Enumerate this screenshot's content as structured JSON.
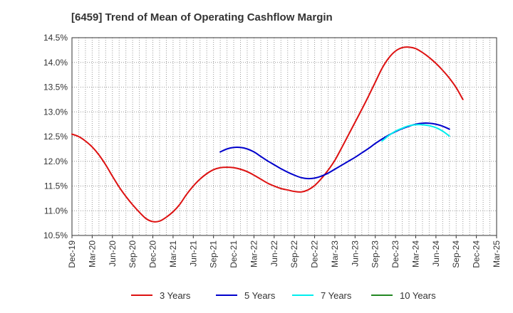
{
  "chart_data": {
    "type": "line",
    "title": "[6459]  Trend of Mean of Operating Cashflow Margin",
    "xlabel": "",
    "ylabel": "",
    "ylim": [
      10.5,
      14.5
    ],
    "yticks": [
      "10.5%",
      "11.0%",
      "11.5%",
      "12.0%",
      "12.5%",
      "13.0%",
      "13.5%",
      "14.0%",
      "14.5%"
    ],
    "ytick_values": [
      10.5,
      11.0,
      11.5,
      12.0,
      12.5,
      13.0,
      13.5,
      14.0,
      14.5
    ],
    "xticks": [
      "Dec-19",
      "Mar-20",
      "Jun-20",
      "Sep-20",
      "Dec-20",
      "Mar-21",
      "Jun-21",
      "Sep-21",
      "Dec-21",
      "Mar-22",
      "Jun-22",
      "Sep-22",
      "Dec-22",
      "Mar-23",
      "Jun-23",
      "Sep-23",
      "Dec-23",
      "Mar-24",
      "Jun-24",
      "Sep-24",
      "Dec-24",
      "Mar-25"
    ],
    "grid": true,
    "legend_position": "bottom",
    "series": [
      {
        "name": "3 Years",
        "color": "#dd1111",
        "points": [
          [
            "Dec-19",
            12.55
          ],
          [
            "Jan-20",
            12.5
          ],
          [
            "Feb-20",
            12.41
          ],
          [
            "Mar-20",
            12.29
          ],
          [
            "Apr-20",
            12.13
          ],
          [
            "May-20",
            11.93
          ],
          [
            "Jun-20",
            11.7
          ],
          [
            "Jul-20",
            11.48
          ],
          [
            "Aug-20",
            11.29
          ],
          [
            "Sep-20",
            11.12
          ],
          [
            "Oct-20",
            10.97
          ],
          [
            "Nov-20",
            10.84
          ],
          [
            "Dec-20",
            10.78
          ],
          [
            "Jan-21",
            10.79
          ],
          [
            "Feb-21",
            10.87
          ],
          [
            "Mar-21",
            10.98
          ],
          [
            "Apr-21",
            11.13
          ],
          [
            "May-21",
            11.33
          ],
          [
            "Jun-21",
            11.5
          ],
          [
            "Jul-21",
            11.64
          ],
          [
            "Aug-21",
            11.75
          ],
          [
            "Sep-21",
            11.83
          ],
          [
            "Oct-21",
            11.87
          ],
          [
            "Nov-21",
            11.88
          ],
          [
            "Dec-21",
            11.87
          ],
          [
            "Jan-22",
            11.84
          ],
          [
            "Feb-22",
            11.79
          ],
          [
            "Mar-22",
            11.72
          ],
          [
            "Apr-22",
            11.64
          ],
          [
            "May-22",
            11.56
          ],
          [
            "Jun-22",
            11.5
          ],
          [
            "Jul-22",
            11.45
          ],
          [
            "Aug-22",
            11.42
          ],
          [
            "Sep-22",
            11.39
          ],
          [
            "Oct-22",
            11.38
          ],
          [
            "Nov-22",
            11.42
          ],
          [
            "Dec-22",
            11.51
          ],
          [
            "Jan-23",
            11.65
          ],
          [
            "Feb-23",
            11.82
          ],
          [
            "Mar-23",
            12.02
          ],
          [
            "Apr-23",
            12.27
          ],
          [
            "May-23",
            12.53
          ],
          [
            "Jun-23",
            12.79
          ],
          [
            "Jul-23",
            13.05
          ],
          [
            "Aug-23",
            13.32
          ],
          [
            "Sep-23",
            13.6
          ],
          [
            "Oct-23",
            13.88
          ],
          [
            "Nov-23",
            14.09
          ],
          [
            "Dec-23",
            14.23
          ],
          [
            "Jan-24",
            14.3
          ],
          [
            "Feb-24",
            14.31
          ],
          [
            "Mar-24",
            14.28
          ],
          [
            "Apr-24",
            14.2
          ],
          [
            "May-24",
            14.1
          ],
          [
            "Jun-24",
            13.98
          ],
          [
            "Jul-24",
            13.84
          ],
          [
            "Aug-24",
            13.68
          ],
          [
            "Sep-24",
            13.49
          ],
          [
            "Oct-24",
            13.25
          ]
        ]
      },
      {
        "name": "5 Years",
        "color": "#0000cc",
        "points": [
          [
            "Oct-21",
            12.19
          ],
          [
            "Nov-21",
            12.25
          ],
          [
            "Dec-21",
            12.28
          ],
          [
            "Jan-22",
            12.28
          ],
          [
            "Feb-22",
            12.25
          ],
          [
            "Mar-22",
            12.19
          ],
          [
            "Apr-22",
            12.1
          ],
          [
            "May-22",
            12.01
          ],
          [
            "Jun-22",
            11.93
          ],
          [
            "Jul-22",
            11.85
          ],
          [
            "Aug-22",
            11.78
          ],
          [
            "Sep-22",
            11.72
          ],
          [
            "Oct-22",
            11.67
          ],
          [
            "Nov-22",
            11.65
          ],
          [
            "Dec-22",
            11.66
          ],
          [
            "Jan-23",
            11.7
          ],
          [
            "Feb-23",
            11.76
          ],
          [
            "Mar-23",
            11.84
          ],
          [
            "Apr-23",
            11.92
          ],
          [
            "May-23",
            12.0
          ],
          [
            "Jun-23",
            12.08
          ],
          [
            "Jul-23",
            12.17
          ],
          [
            "Aug-23",
            12.26
          ],
          [
            "Sep-23",
            12.36
          ],
          [
            "Oct-23",
            12.45
          ],
          [
            "Nov-23",
            12.53
          ],
          [
            "Dec-23",
            12.6
          ],
          [
            "Jan-24",
            12.66
          ],
          [
            "Feb-24",
            12.71
          ],
          [
            "Mar-24",
            12.75
          ],
          [
            "Apr-24",
            12.77
          ],
          [
            "May-24",
            12.77
          ],
          [
            "Jun-24",
            12.75
          ],
          [
            "Jul-24",
            12.71
          ],
          [
            "Aug-24",
            12.65
          ]
        ]
      },
      {
        "name": "7 Years",
        "color": "#00eeee",
        "points": [
          [
            "Oct-23",
            12.41
          ],
          [
            "Nov-23",
            12.52
          ],
          [
            "Dec-23",
            12.61
          ],
          [
            "Jan-24",
            12.67
          ],
          [
            "Feb-24",
            12.72
          ],
          [
            "Mar-24",
            12.74
          ],
          [
            "Apr-24",
            12.74
          ],
          [
            "May-24",
            12.72
          ],
          [
            "Jun-24",
            12.68
          ],
          [
            "Jul-24",
            12.61
          ],
          [
            "Aug-24",
            12.51
          ]
        ]
      },
      {
        "name": "10 Years",
        "color": "#228822",
        "points": []
      }
    ]
  }
}
